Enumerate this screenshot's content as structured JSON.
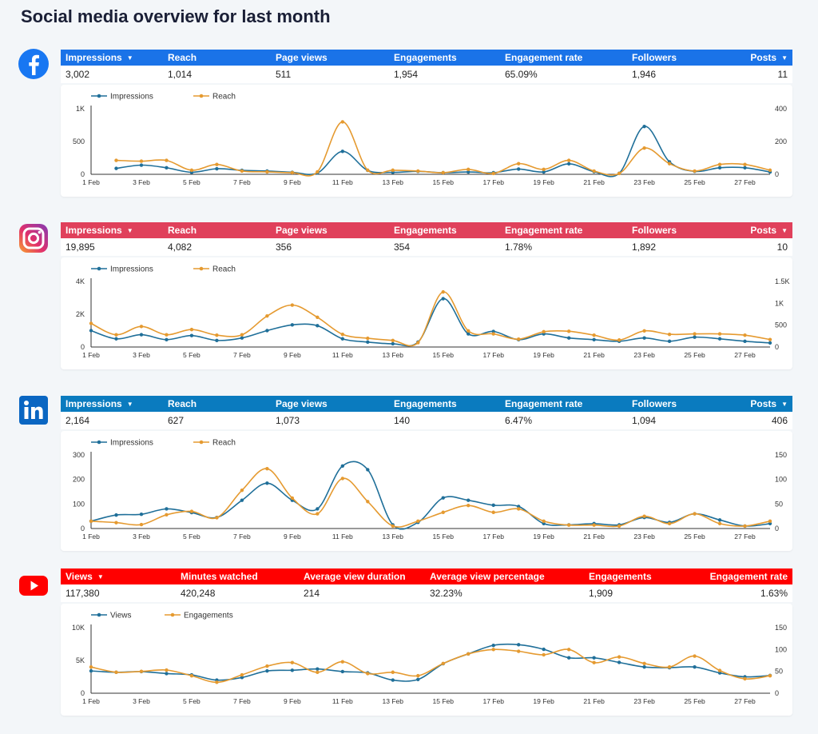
{
  "page": {
    "title": "Social media overview for last month"
  },
  "colors": {
    "facebook": "#1a73e8",
    "instagram": "#e0405b",
    "linkedin": "#0a7bbf",
    "youtube": "#ff0000",
    "series_a": "#1f6f99",
    "series_b": "#e59a30"
  },
  "sections": [
    {
      "id": "facebook",
      "logo_icon": "facebook-icon",
      "headers": [
        {
          "label": "Impressions",
          "sort_icon": "▼"
        },
        {
          "label": "Reach"
        },
        {
          "label": "Page views"
        },
        {
          "label": "Engagements"
        },
        {
          "label": "Engagement rate"
        },
        {
          "label": "Followers"
        },
        {
          "label": "Posts",
          "sort_icon": "▼"
        }
      ],
      "values": [
        "3,002",
        "1,014",
        "511",
        "1,954",
        "65.09%",
        "1,946",
        "11"
      ]
    },
    {
      "id": "instagram",
      "logo_icon": "instagram-icon",
      "headers": [
        {
          "label": "Impressions",
          "sort_icon": "▼"
        },
        {
          "label": "Reach"
        },
        {
          "label": "Page views"
        },
        {
          "label": "Engagements"
        },
        {
          "label": "Engagement rate"
        },
        {
          "label": "Followers"
        },
        {
          "label": "Posts",
          "sort_icon": "▼"
        }
      ],
      "values": [
        "19,895",
        "4,082",
        "356",
        "354",
        "1.78%",
        "1,892",
        "10"
      ]
    },
    {
      "id": "linkedin",
      "logo_icon": "linkedin-icon",
      "headers": [
        {
          "label": "Impressions",
          "sort_icon": "▼"
        },
        {
          "label": "Reach"
        },
        {
          "label": "Page views"
        },
        {
          "label": "Engagements"
        },
        {
          "label": "Engagement rate"
        },
        {
          "label": "Followers"
        },
        {
          "label": "Posts",
          "sort_icon": "▼"
        }
      ],
      "values": [
        "2,164",
        "627",
        "1,073",
        "140",
        "6.47%",
        "1,094",
        "406"
      ]
    },
    {
      "id": "youtube",
      "logo_icon": "youtube-icon",
      "headers": [
        {
          "label": "Views",
          "sort_icon": "▼"
        },
        {
          "label": "Minutes watched"
        },
        {
          "label": "Average view duration"
        },
        {
          "label": "Average view percentage"
        },
        {
          "label": "Engagements"
        },
        {
          "label": "Engagement rate"
        }
      ],
      "values": [
        "117,380",
        "420,248",
        "214",
        "32.23%",
        "1,909",
        "1.63%"
      ]
    }
  ],
  "chart_data": [
    {
      "type": "line",
      "platform": "facebook",
      "x": [
        "1 Feb",
        "2 Feb",
        "3 Feb",
        "4 Feb",
        "5 Feb",
        "6 Feb",
        "7 Feb",
        "8 Feb",
        "9 Feb",
        "10 Feb",
        "11 Feb",
        "12 Feb",
        "13 Feb",
        "14 Feb",
        "15 Feb",
        "16 Feb",
        "17 Feb",
        "18 Feb",
        "19 Feb",
        "20 Feb",
        "21 Feb",
        "22 Feb",
        "23 Feb",
        "24 Feb",
        "25 Feb",
        "26 Feb",
        "27 Feb",
        "28 Feb"
      ],
      "x_ticks": [
        "1 Feb",
        "3 Feb",
        "5 Feb",
        "7 Feb",
        "9 Feb",
        "11 Feb",
        "13 Feb",
        "15 Feb",
        "17 Feb",
        "19 Feb",
        "21 Feb",
        "23 Feb",
        "25 Feb",
        "27 Feb"
      ],
      "left_axis": {
        "ticks": [
          "0",
          "500",
          "1K"
        ],
        "range": [
          0,
          1000
        ]
      },
      "right_axis": {
        "ticks": [
          "0",
          "200",
          "400"
        ],
        "range": [
          0,
          400
        ]
      },
      "series": [
        {
          "name": "Impressions",
          "axis": "left",
          "values": [
            null,
            90,
            140,
            100,
            30,
            85,
            60,
            50,
            30,
            20,
            350,
            60,
            30,
            45,
            25,
            35,
            25,
            80,
            35,
            160,
            40,
            15,
            730,
            190,
            45,
            100,
            100,
            35
          ]
        },
        {
          "name": "Reach",
          "axis": "right",
          "values": [
            null,
            85,
            80,
            85,
            25,
            60,
            20,
            15,
            10,
            15,
            320,
            25,
            25,
            20,
            10,
            30,
            5,
            65,
            30,
            85,
            20,
            5,
            160,
            65,
            20,
            60,
            60,
            25
          ]
        }
      ]
    },
    {
      "type": "line",
      "platform": "instagram",
      "x": [
        "1 Feb",
        "2 Feb",
        "3 Feb",
        "4 Feb",
        "5 Feb",
        "6 Feb",
        "7 Feb",
        "8 Feb",
        "9 Feb",
        "10 Feb",
        "11 Feb",
        "12 Feb",
        "13 Feb",
        "14 Feb",
        "15 Feb",
        "16 Feb",
        "17 Feb",
        "18 Feb",
        "19 Feb",
        "20 Feb",
        "21 Feb",
        "22 Feb",
        "23 Feb",
        "24 Feb",
        "25 Feb",
        "26 Feb",
        "27 Feb",
        "28 Feb"
      ],
      "x_ticks": [
        "1 Feb",
        "3 Feb",
        "5 Feb",
        "7 Feb",
        "9 Feb",
        "11 Feb",
        "13 Feb",
        "15 Feb",
        "17 Feb",
        "19 Feb",
        "21 Feb",
        "23 Feb",
        "25 Feb",
        "27 Feb"
      ],
      "left_axis": {
        "ticks": [
          "0",
          "2K",
          "4K"
        ],
        "range": [
          0,
          4000
        ]
      },
      "right_axis": {
        "ticks": [
          "0",
          "500",
          "1K",
          "1.5K"
        ],
        "range": [
          0,
          1500
        ]
      },
      "series": [
        {
          "name": "Impressions",
          "axis": "left",
          "values": [
            1000,
            500,
            750,
            450,
            700,
            400,
            550,
            1000,
            1350,
            1300,
            500,
            300,
            200,
            300,
            2950,
            800,
            950,
            450,
            800,
            550,
            450,
            350,
            550,
            350,
            600,
            500,
            350,
            250
          ]
        },
        {
          "name": "Reach",
          "axis": "right",
          "values": [
            540,
            280,
            470,
            280,
            400,
            270,
            280,
            710,
            960,
            680,
            290,
            200,
            150,
            100,
            1260,
            370,
            300,
            180,
            350,
            360,
            270,
            160,
            370,
            290,
            300,
            300,
            270,
            170
          ]
        }
      ]
    },
    {
      "type": "line",
      "platform": "linkedin",
      "x": [
        "1 Feb",
        "2 Feb",
        "3 Feb",
        "4 Feb",
        "5 Feb",
        "6 Feb",
        "7 Feb",
        "8 Feb",
        "9 Feb",
        "10 Feb",
        "11 Feb",
        "12 Feb",
        "13 Feb",
        "14 Feb",
        "15 Feb",
        "16 Feb",
        "17 Feb",
        "18 Feb",
        "19 Feb",
        "20 Feb",
        "21 Feb",
        "22 Feb",
        "23 Feb",
        "24 Feb",
        "25 Feb",
        "26 Feb",
        "27 Feb",
        "28 Feb"
      ],
      "x_ticks": [
        "1 Feb",
        "3 Feb",
        "5 Feb",
        "7 Feb",
        "9 Feb",
        "11 Feb",
        "13 Feb",
        "15 Feb",
        "17 Feb",
        "19 Feb",
        "21 Feb",
        "23 Feb",
        "25 Feb",
        "27 Feb"
      ],
      "left_axis": {
        "ticks": [
          "0",
          "100",
          "200",
          "300"
        ],
        "range": [
          0,
          300
        ]
      },
      "right_axis": {
        "ticks": [
          "0",
          "50",
          "100",
          "150"
        ],
        "range": [
          0,
          150
        ]
      },
      "series": [
        {
          "name": "Impressions",
          "axis": "left",
          "values": [
            30,
            55,
            58,
            80,
            65,
            45,
            115,
            185,
            115,
            80,
            255,
            240,
            15,
            25,
            125,
            115,
            95,
            90,
            20,
            15,
            20,
            15,
            45,
            25,
            60,
            35,
            10,
            20
          ]
        },
        {
          "name": "Reach",
          "axis": "right",
          "values": [
            15,
            12,
            8,
            28,
            35,
            22,
            78,
            122,
            62,
            30,
            102,
            55,
            5,
            15,
            33,
            47,
            33,
            40,
            15,
            7,
            7,
            5,
            25,
            10,
            30,
            10,
            5,
            15
          ]
        }
      ]
    },
    {
      "type": "line",
      "platform": "youtube",
      "x": [
        "1 Feb",
        "2 Feb",
        "3 Feb",
        "4 Feb",
        "5 Feb",
        "6 Feb",
        "7 Feb",
        "8 Feb",
        "9 Feb",
        "10 Feb",
        "11 Feb",
        "12 Feb",
        "13 Feb",
        "14 Feb",
        "15 Feb",
        "16 Feb",
        "17 Feb",
        "18 Feb",
        "19 Feb",
        "20 Feb",
        "21 Feb",
        "22 Feb",
        "23 Feb",
        "24 Feb",
        "25 Feb",
        "26 Feb",
        "27 Feb",
        "28 Feb"
      ],
      "x_ticks": [
        "1 Feb",
        "3 Feb",
        "5 Feb",
        "7 Feb",
        "9 Feb",
        "11 Feb",
        "13 Feb",
        "15 Feb",
        "17 Feb",
        "19 Feb",
        "21 Feb",
        "23 Feb",
        "25 Feb",
        "27 Feb"
      ],
      "left_axis": {
        "ticks": [
          "0",
          "5K",
          "10K"
        ],
        "range": [
          0,
          10000
        ]
      },
      "right_axis": {
        "ticks": [
          "0",
          "50",
          "100",
          "150"
        ],
        "range": [
          0,
          150
        ]
      },
      "series": [
        {
          "name": "Views",
          "axis": "left",
          "values": [
            3400,
            3200,
            3300,
            3000,
            2800,
            2000,
            2400,
            3400,
            3500,
            3700,
            3300,
            3100,
            2000,
            2100,
            4500,
            6000,
            7300,
            7400,
            6700,
            5400,
            5400,
            4700,
            4000,
            3900,
            4000,
            3100,
            2500,
            2700
          ]
        },
        {
          "name": "Engagements",
          "axis": "right",
          "values": [
            60,
            48,
            50,
            53,
            40,
            25,
            42,
            62,
            70,
            48,
            72,
            45,
            48,
            40,
            68,
            90,
            100,
            96,
            88,
            100,
            70,
            83,
            68,
            60,
            85,
            52,
            33,
            40
          ]
        }
      ]
    }
  ]
}
